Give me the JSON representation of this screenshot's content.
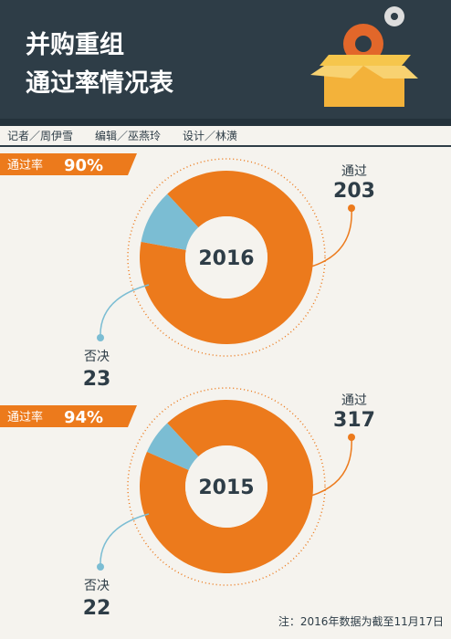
{
  "header": {
    "title_lines": [
      "并购重组",
      "通过率情况表"
    ],
    "credits": "记者／周伊雪　　编辑／巫燕玲　　设计／林潢"
  },
  "chart_data": [
    {
      "type": "pie",
      "title": "2016",
      "rate_name": "通过率",
      "rate_text": "90%",
      "categories": [
        "通过",
        "否决"
      ],
      "values": [
        203,
        23
      ],
      "colors": [
        "#ec7a1c",
        "#7bbdd3"
      ]
    },
    {
      "type": "pie",
      "title": "2015",
      "rate_name": "通过率",
      "rate_text": "94%",
      "categories": [
        "通过",
        "否决"
      ],
      "values": [
        317,
        22
      ],
      "colors": [
        "#ec7a1c",
        "#7bbdd3"
      ]
    }
  ],
  "note": "注：2016年数据为截至11月17日"
}
